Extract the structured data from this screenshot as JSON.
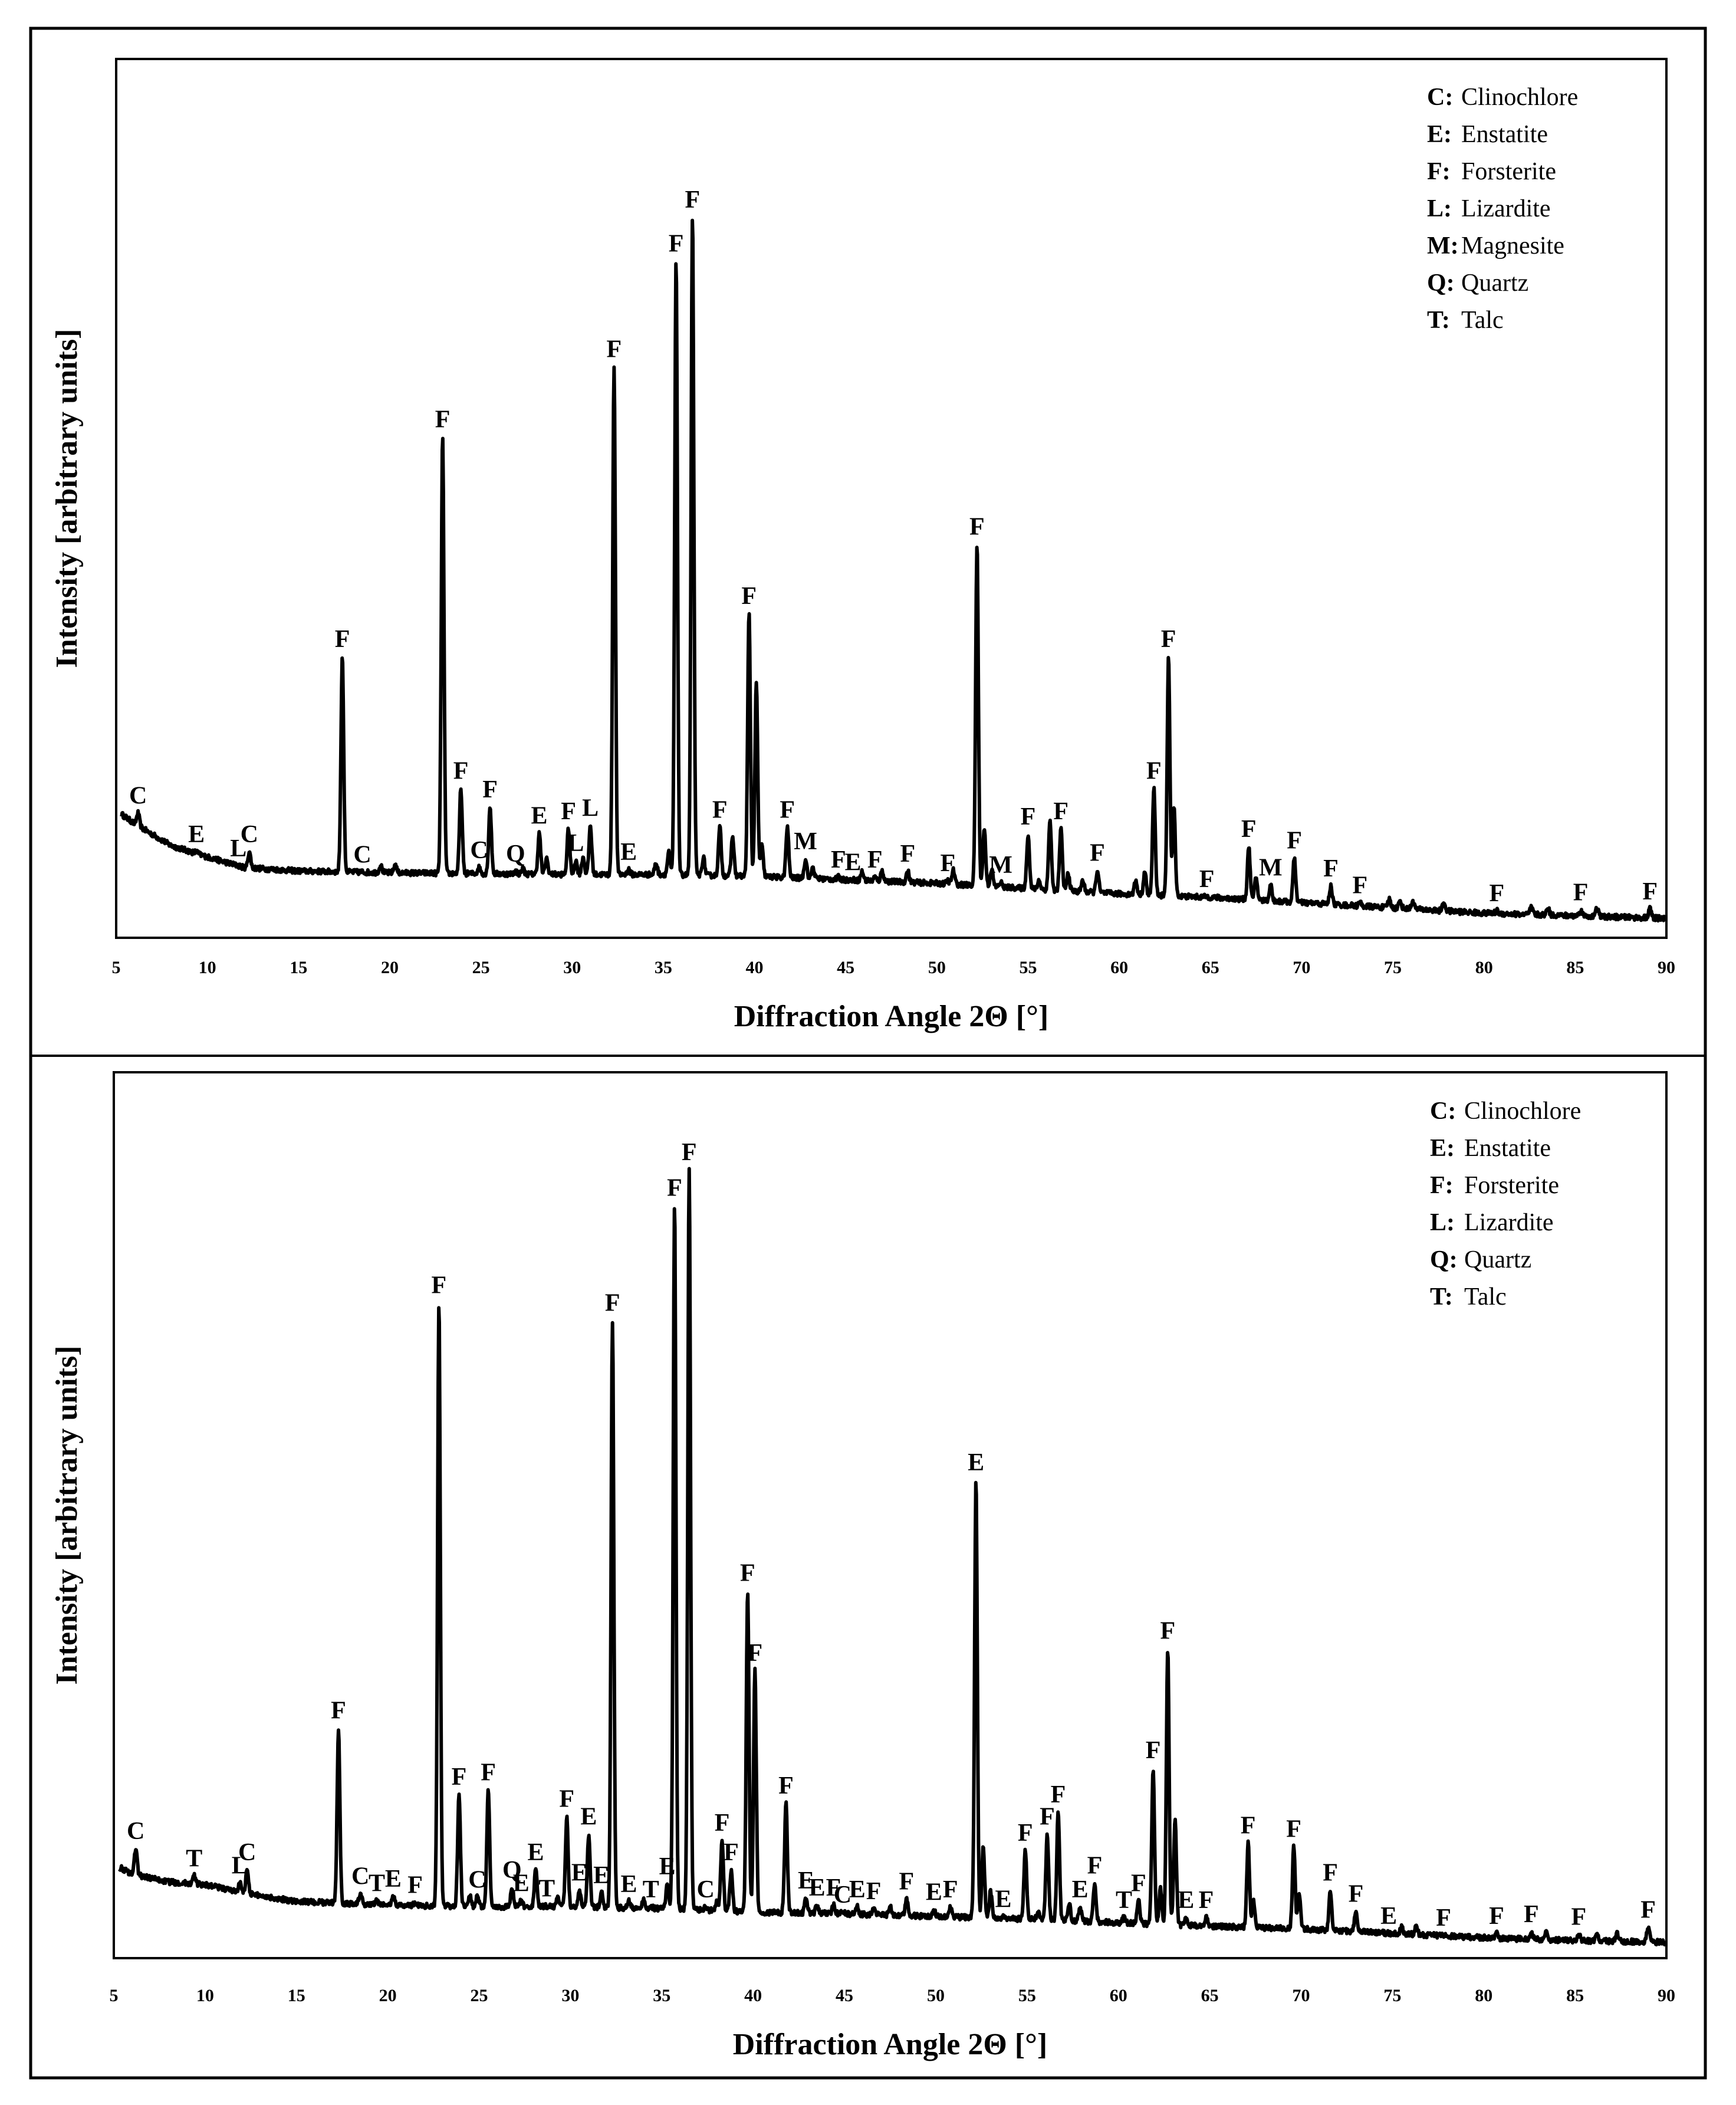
{
  "figure": {
    "description": "XRD patterns, two panels",
    "colors": {
      "line": "#000000",
      "background": "#ffffff"
    }
  },
  "chart_data": [
    {
      "type": "line",
      "title": "",
      "xlabel": "Diffraction Angle 2Θ [°]",
      "ylabel": "Intensity [arbitrary units]",
      "xlim": [
        5,
        90
      ],
      "ylim": [
        0,
        100
      ],
      "xticks": [
        "5",
        "10",
        "15",
        "20",
        "25",
        "30",
        "35",
        "40",
        "45",
        "50",
        "55",
        "60",
        "65",
        "70",
        "75",
        "80",
        "85",
        "90"
      ],
      "legend": [
        {
          "key": "C:",
          "name": "Clinochlore"
        },
        {
          "key": "E:",
          "name": "Enstatite"
        },
        {
          "key": "F:",
          "name": "Forsterite"
        },
        {
          "key": "L:",
          "name": "Lizardite"
        },
        {
          "key": "M:",
          "name": "Magnesite"
        },
        {
          "key": "Q:",
          "name": "Quartz"
        },
        {
          "key": "T:",
          "name": "Talc"
        }
      ],
      "baseline": [
        [
          5,
          14.5
        ],
        [
          6,
          13
        ],
        [
          8,
          10.5
        ],
        [
          10,
          9.2
        ],
        [
          12,
          8
        ],
        [
          15,
          7.6
        ],
        [
          20,
          7.4
        ],
        [
          25,
          7.3
        ],
        [
          30,
          7.2
        ],
        [
          35,
          7.2
        ],
        [
          40,
          7.0
        ],
        [
          45,
          6.6
        ],
        [
          50,
          6.2
        ],
        [
          55,
          5.6
        ],
        [
          60,
          5.0
        ],
        [
          65,
          4.6
        ],
        [
          70,
          4.0
        ],
        [
          75,
          3.4
        ],
        [
          80,
          2.8
        ],
        [
          85,
          2.5
        ],
        [
          90,
          2.2
        ]
      ],
      "peaks": [
        {
          "x": 6.2,
          "y": 14.2,
          "label": "C"
        },
        {
          "x": 9.4,
          "y": 9.8,
          "label": "E"
        },
        {
          "x": 11.7,
          "y": 8.2,
          "label": "L"
        },
        {
          "x": 12.3,
          "y": 9.8,
          "label": "C"
        },
        {
          "x": 17.4,
          "y": 32.0,
          "label": "F"
        },
        {
          "x": 18.5,
          "y": 7.5,
          "label": "C"
        },
        {
          "x": 22.9,
          "y": 57.0,
          "label": "F"
        },
        {
          "x": 23.9,
          "y": 17.0,
          "label": "F"
        },
        {
          "x": 24.9,
          "y": 8.0,
          "label": "C"
        },
        {
          "x": 25.5,
          "y": 14.9,
          "label": "F"
        },
        {
          "x": 26.9,
          "y": 7.6,
          "label": "Q"
        },
        {
          "x": 28.2,
          "y": 11.9,
          "label": "E"
        },
        {
          "x": 29.8,
          "y": 12.4,
          "label": "F"
        },
        {
          "x": 30.2,
          "y": 8.8,
          "label": "L"
        },
        {
          "x": 31.0,
          "y": 12.8,
          "label": "L"
        },
        {
          "x": 32.3,
          "y": 65.0,
          "label": "F"
        },
        {
          "x": 33.1,
          "y": 7.8,
          "label": "E"
        },
        {
          "x": 35.7,
          "y": 77.0,
          "label": "F"
        },
        {
          "x": 36.6,
          "y": 82.0,
          "label": "F"
        },
        {
          "x": 38.1,
          "y": 12.6,
          "label": "F"
        },
        {
          "x": 39.7,
          "y": 36.9,
          "label": "F"
        },
        {
          "x": 41.8,
          "y": 12.6,
          "label": "F"
        },
        {
          "x": 42.8,
          "y": 9.0,
          "label": "M"
        },
        {
          "x": 44.6,
          "y": 6.9,
          "label": "F"
        },
        {
          "x": 45.4,
          "y": 6.6,
          "label": "E"
        },
        {
          "x": 46.6,
          "y": 6.9,
          "label": "F"
        },
        {
          "x": 48.4,
          "y": 7.6,
          "label": "F"
        },
        {
          "x": 50.6,
          "y": 6.5,
          "label": "F"
        },
        {
          "x": 52.2,
          "y": 44.8,
          "label": "F"
        },
        {
          "x": 53.5,
          "y": 6.3,
          "label": "M"
        },
        {
          "x": 55.0,
          "y": 11.8,
          "label": "F"
        },
        {
          "x": 56.8,
          "y": 12.4,
          "label": "F"
        },
        {
          "x": 58.8,
          "y": 7.7,
          "label": "F"
        },
        {
          "x": 61.9,
          "y": 17.0,
          "label": "F"
        },
        {
          "x": 62.7,
          "y": 32.0,
          "label": "F"
        },
        {
          "x": 64.8,
          "y": 4.7,
          "label": "F"
        },
        {
          "x": 67.1,
          "y": 10.4,
          "label": "F"
        },
        {
          "x": 68.3,
          "y": 6.0,
          "label": "M"
        },
        {
          "x": 69.6,
          "y": 9.1,
          "label": "F"
        },
        {
          "x": 71.6,
          "y": 5.9,
          "label": "F"
        },
        {
          "x": 73.2,
          "y": 4.0,
          "label": "F"
        },
        {
          "x": 80.7,
          "y": 3.1,
          "label": "F"
        },
        {
          "x": 85.3,
          "y": 3.2,
          "label": "F"
        },
        {
          "x": 89.1,
          "y": 3.3,
          "label": "F"
        }
      ],
      "minor_peaks": [
        [
          19.5,
          0.8
        ],
        [
          20.3,
          0.9
        ],
        [
          27.3,
          0.6
        ],
        [
          28.6,
          1.8
        ],
        [
          30.6,
          2.0
        ],
        [
          34.6,
          1.3
        ],
        [
          35.3,
          2.5
        ],
        [
          37.2,
          2.0
        ],
        [
          38.8,
          4.5
        ],
        [
          40.1,
          22.0
        ],
        [
          40.4,
          3.5
        ],
        [
          43.2,
          1.3
        ],
        [
          45.9,
          1.0
        ],
        [
          47.0,
          1.2
        ],
        [
          50.9,
          1.6
        ],
        [
          52.6,
          6.5
        ],
        [
          53.0,
          2.0
        ],
        [
          55.6,
          1.0
        ],
        [
          56.2,
          8.0
        ],
        [
          57.2,
          2.0
        ],
        [
          58.0,
          1.3
        ],
        [
          60.9,
          1.6
        ],
        [
          61.4,
          2.6
        ],
        [
          63.0,
          10.0
        ],
        [
          67.5,
          2.6
        ],
        [
          74.8,
          1.0
        ],
        [
          75.4,
          0.8
        ],
        [
          76.1,
          0.9
        ],
        [
          77.8,
          0.9
        ],
        [
          82.6,
          0.8
        ],
        [
          83.5,
          0.8
        ],
        [
          86.2,
          0.9
        ]
      ]
    },
    {
      "type": "line",
      "title": "",
      "xlabel": "Diffraction Angle 2Θ [°]",
      "ylabel": "Intensity [arbitrary units]",
      "xlim": [
        5,
        90
      ],
      "ylim": [
        0,
        100
      ],
      "xticks": [
        "5",
        "10",
        "15",
        "20",
        "25",
        "30",
        "35",
        "40",
        "45",
        "50",
        "55",
        "60",
        "65",
        "70",
        "75",
        "80",
        "85",
        "90"
      ],
      "legend": [
        {
          "key": "C:",
          "name": "Clinochlore"
        },
        {
          "key": "E:",
          "name": "Enstatite"
        },
        {
          "key": "F:",
          "name": "Forsterite"
        },
        {
          "key": "L:",
          "name": "Lizardite"
        },
        {
          "key": "Q:",
          "name": "Quartz"
        },
        {
          "key": "T:",
          "name": "Talc"
        }
      ],
      "baseline": [
        [
          5,
          10.6
        ],
        [
          6,
          9.5
        ],
        [
          8,
          8.6
        ],
        [
          10,
          8.3
        ],
        [
          12,
          7.4
        ],
        [
          15,
          6.4
        ],
        [
          20,
          6.0
        ],
        [
          25,
          5.8
        ],
        [
          30,
          5.8
        ],
        [
          35,
          5.6
        ],
        [
          40,
          5.2
        ],
        [
          45,
          5.0
        ],
        [
          50,
          4.7
        ],
        [
          55,
          4.4
        ],
        [
          60,
          4.0
        ],
        [
          65,
          3.6
        ],
        [
          70,
          3.3
        ],
        [
          75,
          2.8
        ],
        [
          80,
          2.3
        ],
        [
          85,
          2.0
        ],
        [
          90,
          1.8
        ]
      ],
      "peaks": [
        {
          "x": 6.2,
          "y": 12.4,
          "label": "C"
        },
        {
          "x": 9.4,
          "y": 9.3,
          "label": "T"
        },
        {
          "x": 11.9,
          "y": 8.5,
          "label": "L"
        },
        {
          "x": 12.3,
          "y": 10.0,
          "label": "C"
        },
        {
          "x": 17.3,
          "y": 26.0,
          "label": "F"
        },
        {
          "x": 18.5,
          "y": 7.3,
          "label": "C"
        },
        {
          "x": 19.4,
          "y": 6.5,
          "label": "T"
        },
        {
          "x": 20.3,
          "y": 7.0,
          "label": "E"
        },
        {
          "x": 21.5,
          "y": 6.3,
          "label": "F"
        },
        {
          "x": 22.8,
          "y": 74.0,
          "label": "F"
        },
        {
          "x": 23.9,
          "y": 18.5,
          "label": "F"
        },
        {
          "x": 24.9,
          "y": 6.9,
          "label": "C"
        },
        {
          "x": 25.5,
          "y": 19.0,
          "label": "F"
        },
        {
          "x": 26.8,
          "y": 8.0,
          "label": "Q"
        },
        {
          "x": 27.3,
          "y": 6.5,
          "label": "E"
        },
        {
          "x": 28.1,
          "y": 10.0,
          "label": "E"
        },
        {
          "x": 28.7,
          "y": 5.9,
          "label": "T"
        },
        {
          "x": 29.8,
          "y": 16.0,
          "label": "F"
        },
        {
          "x": 30.5,
          "y": 7.7,
          "label": "E"
        },
        {
          "x": 31.0,
          "y": 14.0,
          "label": "E"
        },
        {
          "x": 31.7,
          "y": 7.4,
          "label": "E"
        },
        {
          "x": 32.3,
          "y": 72.0,
          "label": "F"
        },
        {
          "x": 33.2,
          "y": 6.4,
          "label": "E"
        },
        {
          "x": 34.4,
          "y": 5.8,
          "label": "T"
        },
        {
          "x": 35.3,
          "y": 8.4,
          "label": "E"
        },
        {
          "x": 35.7,
          "y": 85.0,
          "label": "F"
        },
        {
          "x": 36.5,
          "y": 89.0,
          "label": "F"
        },
        {
          "x": 37.4,
          "y": 5.8,
          "label": "C"
        },
        {
          "x": 38.3,
          "y": 13.3,
          "label": "F"
        },
        {
          "x": 38.8,
          "y": 10.0,
          "label": "F"
        },
        {
          "x": 39.7,
          "y": 41.5,
          "label": "F"
        },
        {
          "x": 40.1,
          "y": 32.5,
          "label": "F"
        },
        {
          "x": 41.8,
          "y": 17.5,
          "label": "F"
        },
        {
          "x": 42.9,
          "y": 6.8,
          "label": "E"
        },
        {
          "x": 43.5,
          "y": 6.0,
          "label": "E"
        },
        {
          "x": 44.4,
          "y": 6.0,
          "label": "F"
        },
        {
          "x": 44.9,
          "y": 5.2,
          "label": "C"
        },
        {
          "x": 45.7,
          "y": 5.8,
          "label": "E"
        },
        {
          "x": 46.6,
          "y": 5.6,
          "label": "F"
        },
        {
          "x": 48.4,
          "y": 6.7,
          "label": "F"
        },
        {
          "x": 49.9,
          "y": 5.5,
          "label": "E"
        },
        {
          "x": 50.8,
          "y": 5.8,
          "label": "F"
        },
        {
          "x": 52.2,
          "y": 54.0,
          "label": "E"
        },
        {
          "x": 53.7,
          "y": 4.7,
          "label": "E"
        },
        {
          "x": 54.9,
          "y": 12.2,
          "label": "F"
        },
        {
          "x": 56.1,
          "y": 14.0,
          "label": "F"
        },
        {
          "x": 56.7,
          "y": 16.5,
          "label": "F"
        },
        {
          "x": 57.9,
          "y": 5.8,
          "label": "E"
        },
        {
          "x": 58.7,
          "y": 8.5,
          "label": "F"
        },
        {
          "x": 60.3,
          "y": 4.6,
          "label": "T"
        },
        {
          "x": 61.1,
          "y": 6.5,
          "label": "F"
        },
        {
          "x": 61.9,
          "y": 21.5,
          "label": "F"
        },
        {
          "x": 62.7,
          "y": 35.0,
          "label": "F"
        },
        {
          "x": 63.7,
          "y": 4.6,
          "label": "E"
        },
        {
          "x": 64.8,
          "y": 4.6,
          "label": "F"
        },
        {
          "x": 67.1,
          "y": 13.0,
          "label": "F"
        },
        {
          "x": 69.6,
          "y": 12.6,
          "label": "F"
        },
        {
          "x": 71.6,
          "y": 7.7,
          "label": "F"
        },
        {
          "x": 73.0,
          "y": 5.3,
          "label": "F"
        },
        {
          "x": 74.8,
          "y": 2.8,
          "label": "E"
        },
        {
          "x": 77.8,
          "y": 2.6,
          "label": "F"
        },
        {
          "x": 80.7,
          "y": 2.8,
          "label": "F"
        },
        {
          "x": 82.6,
          "y": 3.0,
          "label": "F"
        },
        {
          "x": 85.2,
          "y": 2.7,
          "label": "F"
        },
        {
          "x": 89.0,
          "y": 3.5,
          "label": "F"
        }
      ],
      "minor_peaks": [
        [
          24.5,
          1.2
        ],
        [
          29.3,
          1.2
        ],
        [
          34.0,
          1.0
        ],
        [
          38.0,
          1.0
        ],
        [
          47.5,
          1.0
        ],
        [
          52.6,
          8.0
        ],
        [
          53.0,
          3.0
        ],
        [
          55.6,
          1.0
        ],
        [
          57.3,
          2.0
        ],
        [
          62.3,
          4.0
        ],
        [
          63.1,
          12.0
        ],
        [
          67.4,
          3.0
        ],
        [
          69.9,
          4.0
        ],
        [
          75.5,
          0.8
        ],
        [
          76.3,
          0.9
        ],
        [
          83.4,
          0.8
        ],
        [
          86.2,
          0.9
        ],
        [
          87.3,
          0.8
        ]
      ]
    }
  ]
}
